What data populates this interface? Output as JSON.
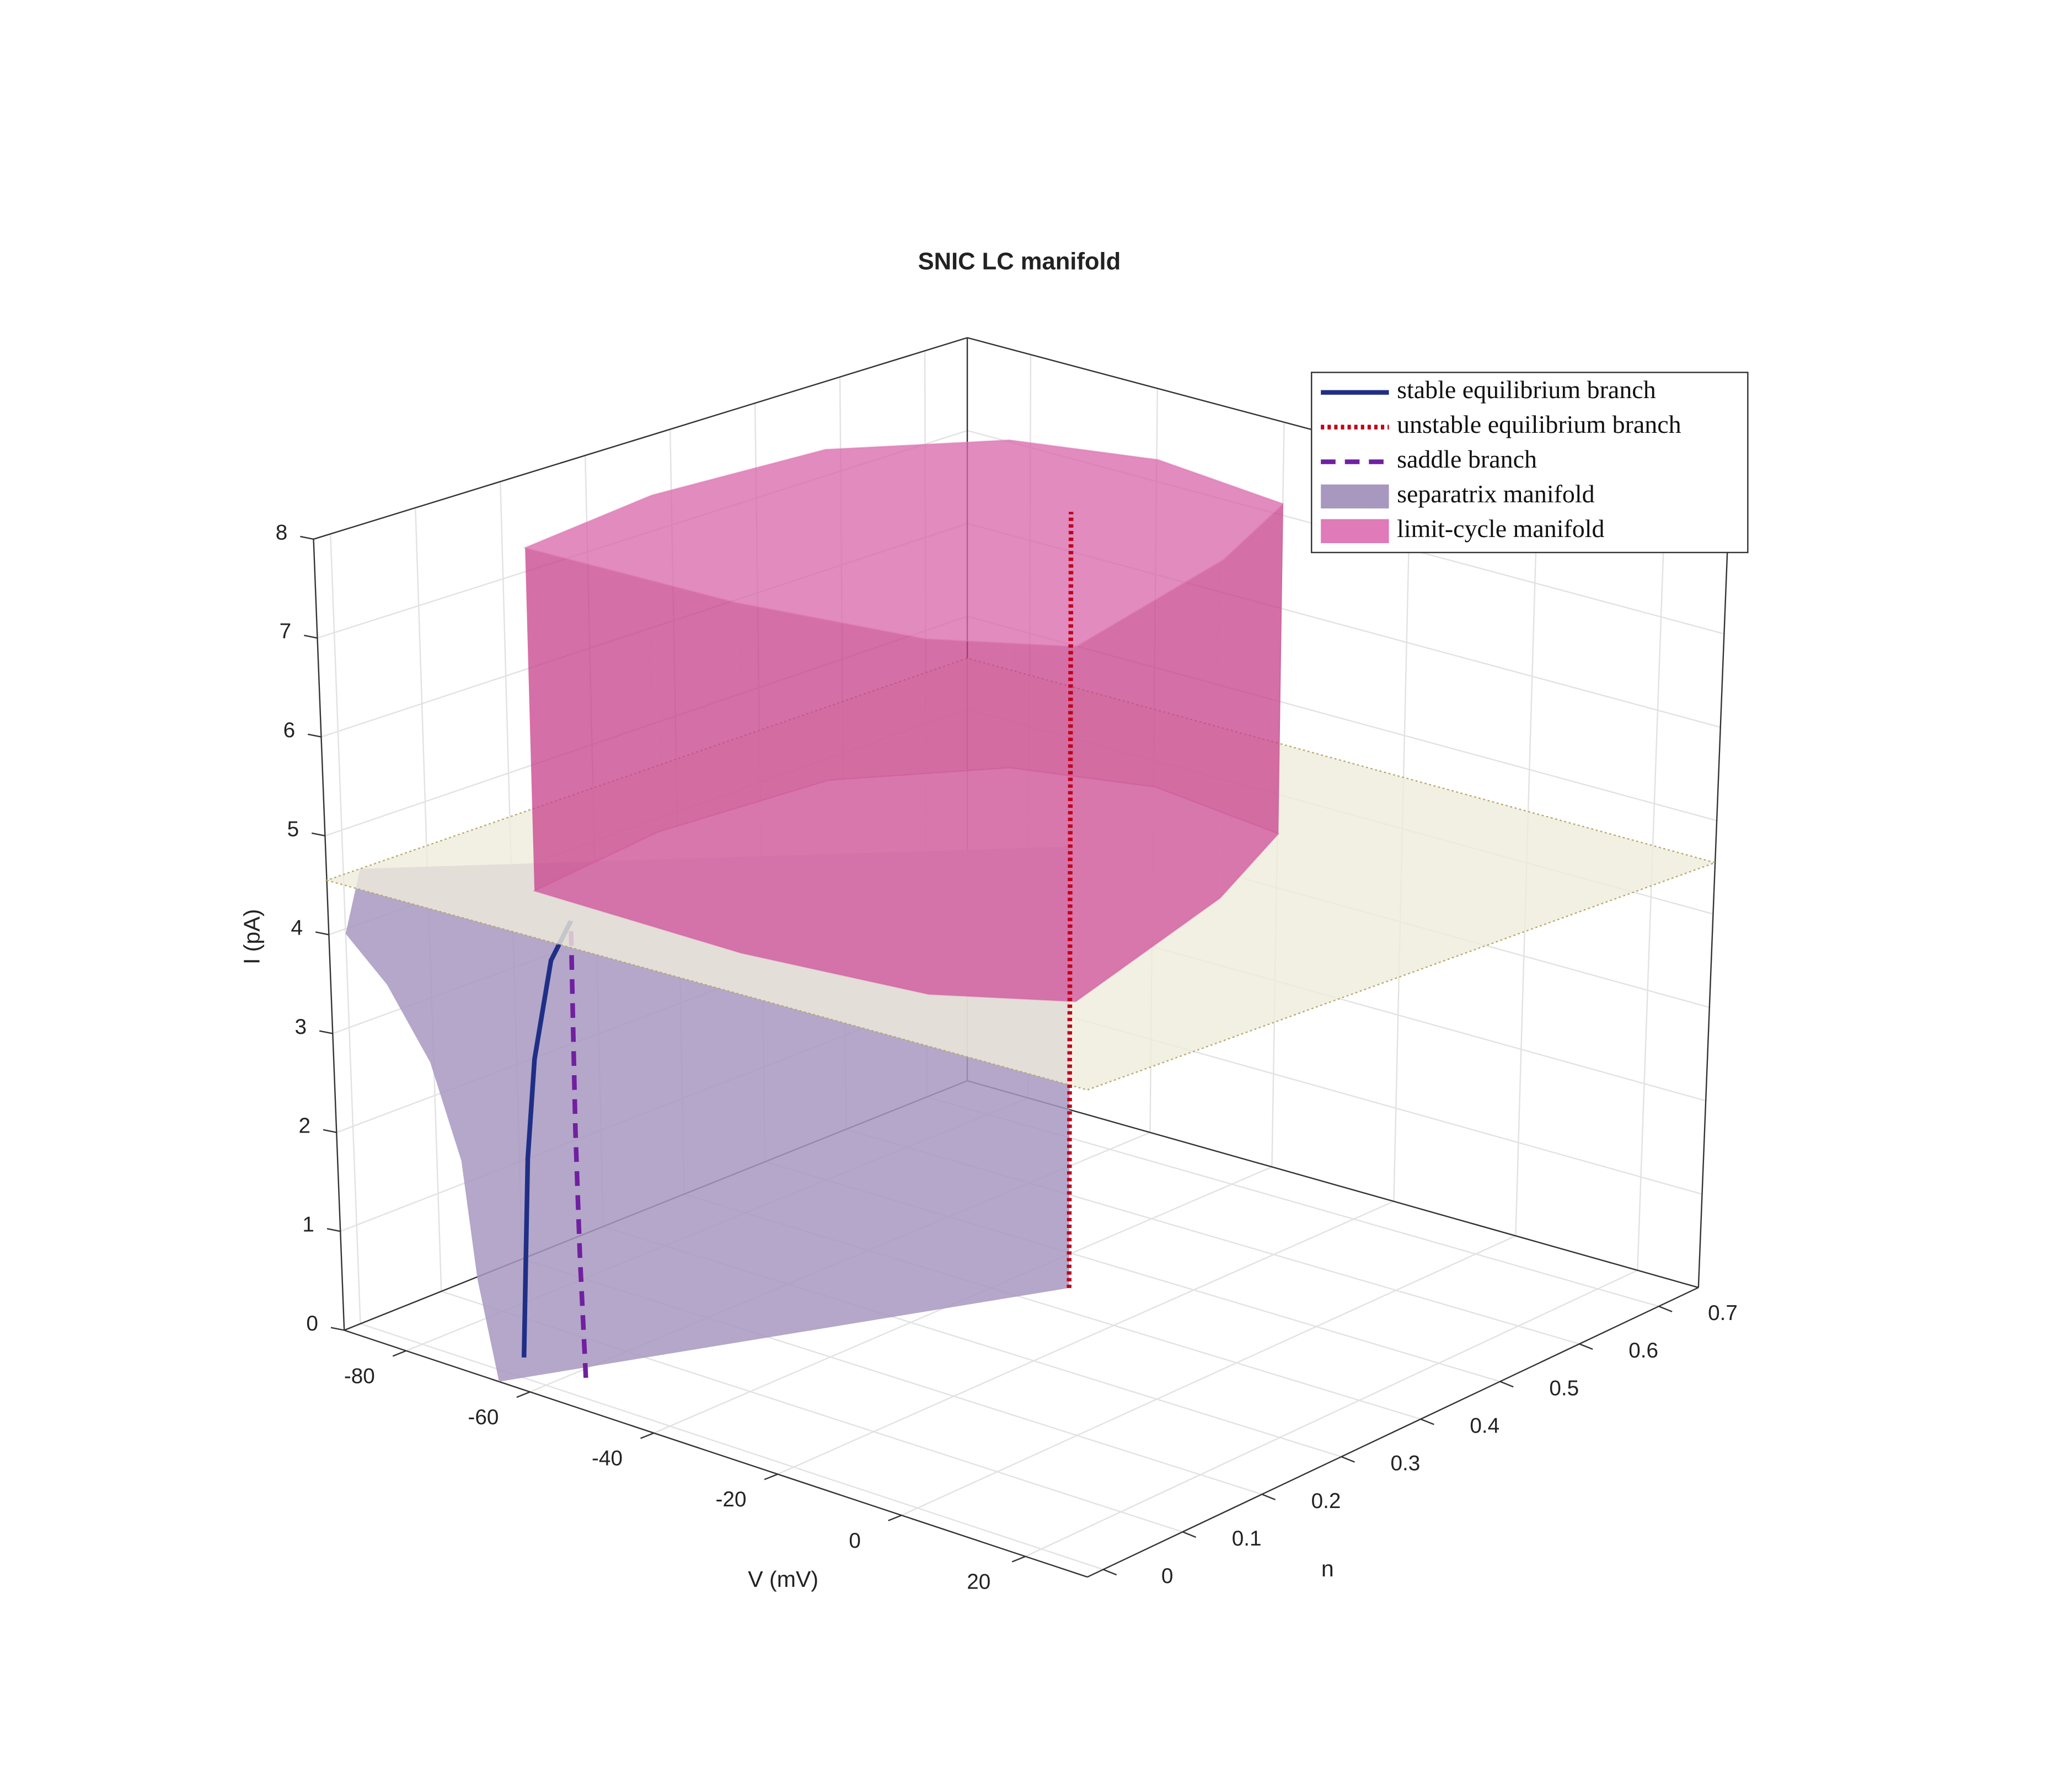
{
  "chart_data": {
    "type": "surface3d",
    "title": "SNIC LC manifold",
    "xlabel": "V (mV)",
    "ylabel": "n",
    "zlabel": "I (pA)",
    "xlim": [
      -90,
      30
    ],
    "ylim": [
      -0.02,
      0.75
    ],
    "zlim": [
      0,
      8
    ],
    "xticks": [
      -80,
      -60,
      -40,
      -20,
      0,
      20
    ],
    "yticks": [
      0,
      0.1,
      0.2,
      0.3,
      0.4,
      0.5,
      0.6,
      0.7
    ],
    "zticks": [
      0,
      1,
      2,
      3,
      4,
      5,
      6,
      7,
      8
    ],
    "grid": true,
    "legend": "upper right",
    "series": [
      {
        "name": "stable equilibrium branch",
        "color": "#1f2f86",
        "style": "solid",
        "V": [
          -68,
          -67.5,
          -67,
          -66,
          -64,
          -62
        ],
        "n": [
          0.034,
          0.036,
          0.038,
          0.042,
          0.05,
          0.06
        ],
        "I": [
          0,
          1,
          2,
          3,
          4,
          4.4
        ]
      },
      {
        "name": "unstable equilibrium branch",
        "color": "#c0001a",
        "style": "dotted",
        "V": [
          -32.5,
          -32.5
        ],
        "n": [
          0.44,
          0.44
        ],
        "I": [
          0,
          8
        ]
      },
      {
        "name": "saddle branch",
        "color": "#7020a0",
        "style": "dashed",
        "V": [
          -58,
          -59,
          -60,
          -61,
          -62
        ],
        "n": [
          0.034,
          0.038,
          0.044,
          0.052,
          0.06
        ],
        "I": [
          0,
          1.2,
          2.4,
          3.6,
          4.4
        ]
      }
    ],
    "surfaces": [
      {
        "name": "separatrix manifold",
        "color": "#a898c0",
        "kind": "patch",
        "V": [
          -65,
          -32.5,
          -32.5,
          -90,
          -90,
          -81,
          -74.5,
          -70,
          -68
        ],
        "n": [
          -0.02,
          0.44,
          0.44,
          0.02,
          0,
          -0.02,
          -0.02,
          -0.02,
          -0.02
        ],
        "I": [
          0,
          0,
          4.55,
          4.55,
          3.95,
          3.66,
          3.0,
          2.1,
          0.96
        ]
      },
      {
        "name": "limit-cycle manifold",
        "color": "#e07ab8",
        "kind": "tube",
        "V": [
          -69,
          -73,
          -71,
          -58,
          -40,
          -17,
          -6,
          7,
          -8,
          -35
        ],
        "n": [
          0.07,
          0.25,
          0.44,
          0.56,
          0.6,
          0.575,
          0.42,
          0.144,
          0.08,
          0.06
        ],
        "I": [
          4.55,
          8
        ]
      }
    ],
    "plane": {
      "I": 4.55,
      "color": "#efecdc",
      "edge": "#b8a86a"
    }
  }
}
